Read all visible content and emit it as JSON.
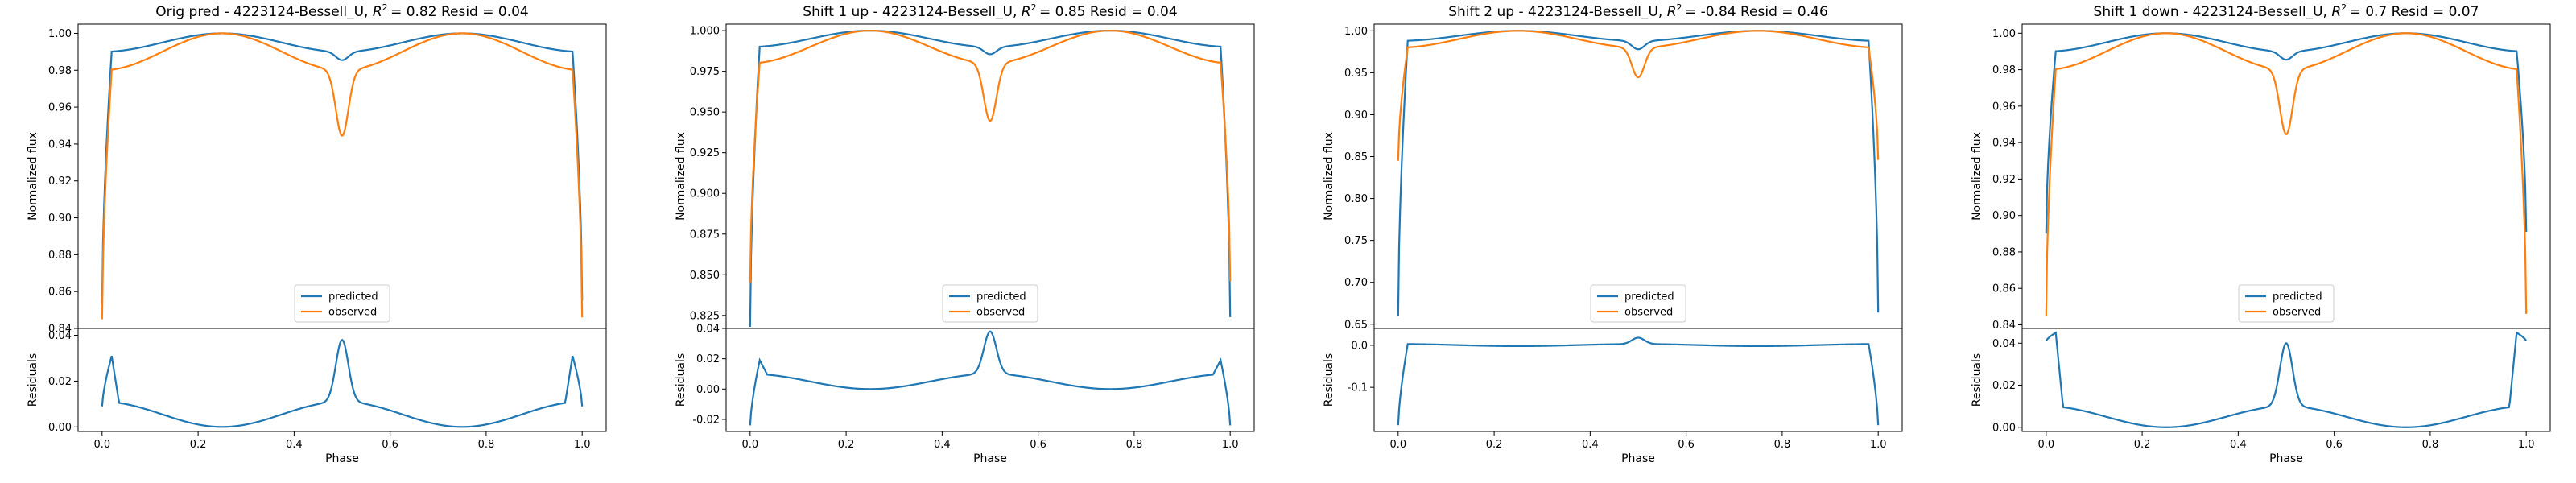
{
  "colors": {
    "predicted": "#1f77b4",
    "observed": "#ff7f0e",
    "frame": "#000000"
  },
  "chart_data": [
    {
      "type": "line",
      "title": "Orig pred - 4223124-Bessell_U, R² = 0.82 Resid = 0.04",
      "title_parts": {
        "pre": "Orig pred - 4223124-Bessell_U, ",
        "rsq": "= 0.82 Resid = 0.04"
      },
      "xlabel": "Phase",
      "ylabel": "Normalized flux",
      "resid_ylabel": "Residuals",
      "xlim": [
        -0.05,
        1.05
      ],
      "ylim": [
        0.84,
        1.005
      ],
      "resid_ylim": [
        -0.002,
        0.043
      ],
      "xticks": [
        "0.0",
        "0.2",
        "0.4",
        "0.6",
        "0.8",
        "1.0"
      ],
      "yticks": [
        "0.84",
        "0.86",
        "0.88",
        "0.90",
        "0.92",
        "0.94",
        "0.96",
        "0.98",
        "1.00"
      ],
      "resid_yticks": [
        "0.00",
        "0.02",
        "0.04"
      ],
      "legend": [
        "predicted",
        "observed"
      ],
      "legend_position": "lower center",
      "series": [
        {
          "name": "predicted",
          "edge_start": 0.853,
          "edge_end": 0.855,
          "plateau": 0.99,
          "max": 1.0,
          "dip_depth": 0.0045
        },
        {
          "name": "observed",
          "edge_start": 0.845,
          "edge_end": 0.846,
          "plateau": 0.98,
          "max": 1.0,
          "dip_depth": 0.0355
        }
      ],
      "residuals": {
        "start": 0.009,
        "edge_peak": 0.031,
        "shoulder": 0.011,
        "min": 0.0,
        "center_peak": 0.038,
        "end": 0.009
      }
    },
    {
      "type": "line",
      "title": "Shift 1 up - 4223124-Bessell_U, R² = 0.85 Resid = 0.04",
      "title_parts": {
        "pre": "Shift 1 up - 4223124-Bessell_U, ",
        "rsq": "= 0.85 Resid = 0.04"
      },
      "xlabel": "Phase",
      "ylabel": "Normalized flux",
      "resid_ylabel": "Residuals",
      "xlim": [
        -0.05,
        1.05
      ],
      "ylim": [
        0.817,
        1.004
      ],
      "resid_ylim": [
        -0.028,
        0.04
      ],
      "xticks": [
        "0.0",
        "0.2",
        "0.4",
        "0.6",
        "0.8",
        "1.0"
      ],
      "yticks": [
        "0.825",
        "0.850",
        "0.875",
        "0.900",
        "0.925",
        "0.950",
        "0.975",
        "1.000"
      ],
      "resid_yticks": [
        "-0.02",
        "0.00",
        "0.02",
        "0.04"
      ],
      "legend": [
        "predicted",
        "observed"
      ],
      "legend_position": "lower center",
      "series": [
        {
          "name": "predicted",
          "edge_start": 0.818,
          "edge_end": 0.824,
          "plateau": 0.99,
          "max": 1.0,
          "dip_depth": 0.0045
        },
        {
          "name": "observed",
          "edge_start": 0.845,
          "edge_end": 0.846,
          "plateau": 0.98,
          "max": 1.0,
          "dip_depth": 0.0355
        }
      ],
      "residuals": {
        "start": -0.024,
        "edge_peak": 0.019,
        "shoulder": 0.01,
        "min": 0.0,
        "center_peak": 0.038,
        "end": -0.024
      }
    },
    {
      "type": "line",
      "title": "Shift 2 up - 4223124-Bessell_U, R² = -0.84 Resid = 0.46",
      "title_parts": {
        "pre": "Shift 2 up - 4223124-Bessell_U, ",
        "rsq": "= -0.84 Resid = 0.46"
      },
      "xlabel": "Phase",
      "ylabel": "Normalized flux",
      "resid_ylabel": "Residuals",
      "xlim": [
        -0.05,
        1.05
      ],
      "ylim": [
        0.645,
        1.008
      ],
      "resid_ylim": [
        -0.205,
        0.04
      ],
      "xticks": [
        "0.0",
        "0.2",
        "0.4",
        "0.6",
        "0.8",
        "1.0"
      ],
      "yticks": [
        "0.65",
        "0.70",
        "0.75",
        "0.80",
        "0.85",
        "0.90",
        "0.95",
        "1.00"
      ],
      "resid_yticks": [
        "-0.1",
        "0.0"
      ],
      "legend": [
        "predicted",
        "observed"
      ],
      "legend_position": "lower center",
      "series": [
        {
          "name": "predicted",
          "edge_start": 0.66,
          "edge_end": 0.664,
          "plateau": 0.988,
          "max": 1.0,
          "dip_depth": 0.01
        },
        {
          "name": "observed",
          "edge_start": 0.845,
          "edge_end": 0.846,
          "plateau": 0.98,
          "max": 1.0,
          "dip_depth": 0.0355
        }
      ],
      "residuals": {
        "start": -0.19,
        "edge_peak": 0.003,
        "shoulder": 0.003,
        "min": -0.002,
        "center_peak": 0.018,
        "end": -0.19
      }
    },
    {
      "type": "line",
      "title": "Shift 1 down - 4223124-Bessell_U, R² = 0.7 Resid = 0.07",
      "title_parts": {
        "pre": "Shift 1 down - 4223124-Bessell_U, ",
        "rsq": "= 0.7 Resid = 0.07"
      },
      "xlabel": "Phase",
      "ylabel": "Normalized flux",
      "resid_ylabel": "Residuals",
      "xlim": [
        -0.05,
        1.05
      ],
      "ylim": [
        0.838,
        1.005
      ],
      "resid_ylim": [
        -0.002,
        0.047
      ],
      "xticks": [
        "0.0",
        "0.2",
        "0.4",
        "0.6",
        "0.8",
        "1.0"
      ],
      "yticks": [
        "0.84",
        "0.86",
        "0.88",
        "0.90",
        "0.92",
        "0.94",
        "0.96",
        "0.98",
        "1.00"
      ],
      "resid_yticks": [
        "0.00",
        "0.02",
        "0.04"
      ],
      "legend": [
        "predicted",
        "observed"
      ],
      "legend_position": "lower center",
      "series": [
        {
          "name": "predicted",
          "edge_start": 0.89,
          "edge_end": 0.891,
          "plateau": 0.99,
          "max": 1.0,
          "dip_depth": 0.0045
        },
        {
          "name": "observed",
          "edge_start": 0.845,
          "edge_end": 0.846,
          "plateau": 0.98,
          "max": 1.0,
          "dip_depth": 0.0355
        }
      ],
      "residuals": {
        "start": 0.041,
        "edge_peak": 0.045,
        "shoulder": 0.01,
        "min": 0.0,
        "center_peak": 0.04,
        "end": 0.041
      }
    }
  ]
}
